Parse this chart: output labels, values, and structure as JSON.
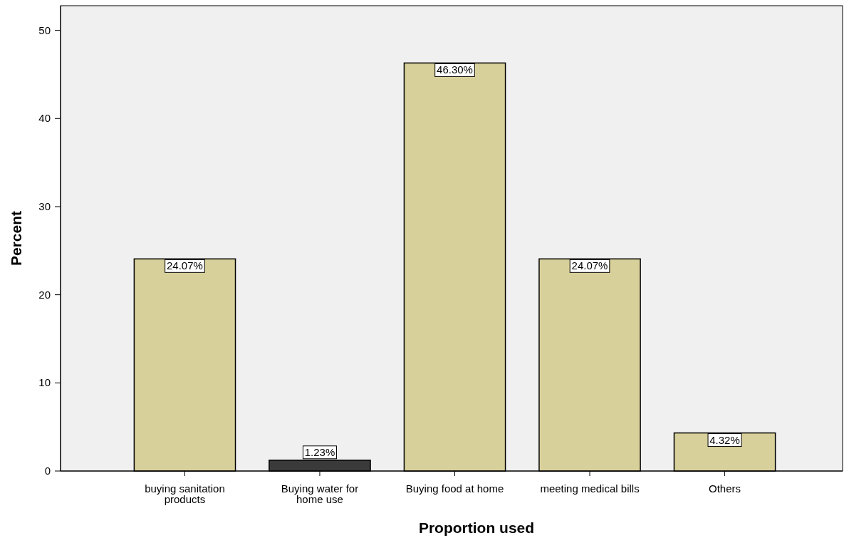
{
  "chart_data": {
    "type": "bar",
    "xlabel": "Proportion used",
    "ylabel": "Percent",
    "categories": [
      "buying sanitation products",
      "Buying water for home use",
      "Buying food at home",
      "meeting medical bills",
      "Others"
    ],
    "values": [
      24.07,
      1.23,
      46.3,
      24.07,
      4.32
    ],
    "value_labels": [
      "24.07%",
      "1.23%",
      "46.30%",
      "24.07%",
      "4.32%"
    ],
    "colors": [
      "#d8d09a",
      "#3a3a3a",
      "#d8d09a",
      "#d8d09a",
      "#d8d09a"
    ],
    "ylim": [
      0,
      52.8
    ],
    "yticks": [
      0,
      10,
      20,
      30,
      40,
      50
    ],
    "grid": false
  }
}
